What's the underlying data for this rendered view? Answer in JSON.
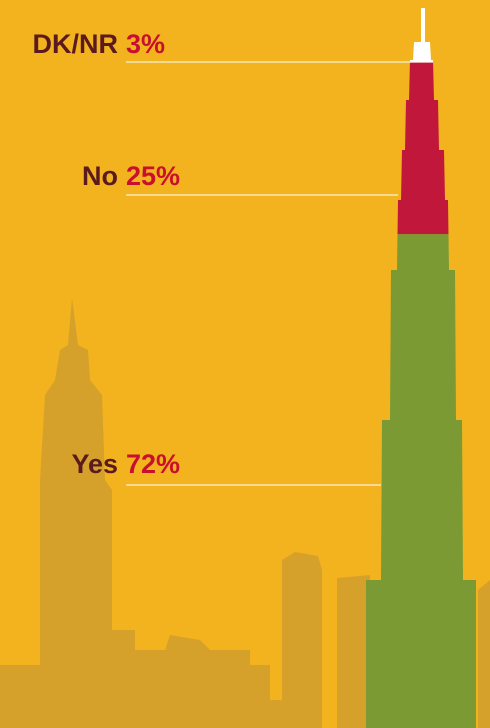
{
  "chart_data": {
    "type": "tower",
    "categories": [
      "DK/NR",
      "No",
      "Yes"
    ],
    "values": [
      3,
      25,
      72
    ],
    "value_labels": [
      "3%",
      "25%",
      "72%"
    ],
    "colors": [
      "#ffffff",
      "#c0173a",
      "#7b9a33"
    ]
  }
}
